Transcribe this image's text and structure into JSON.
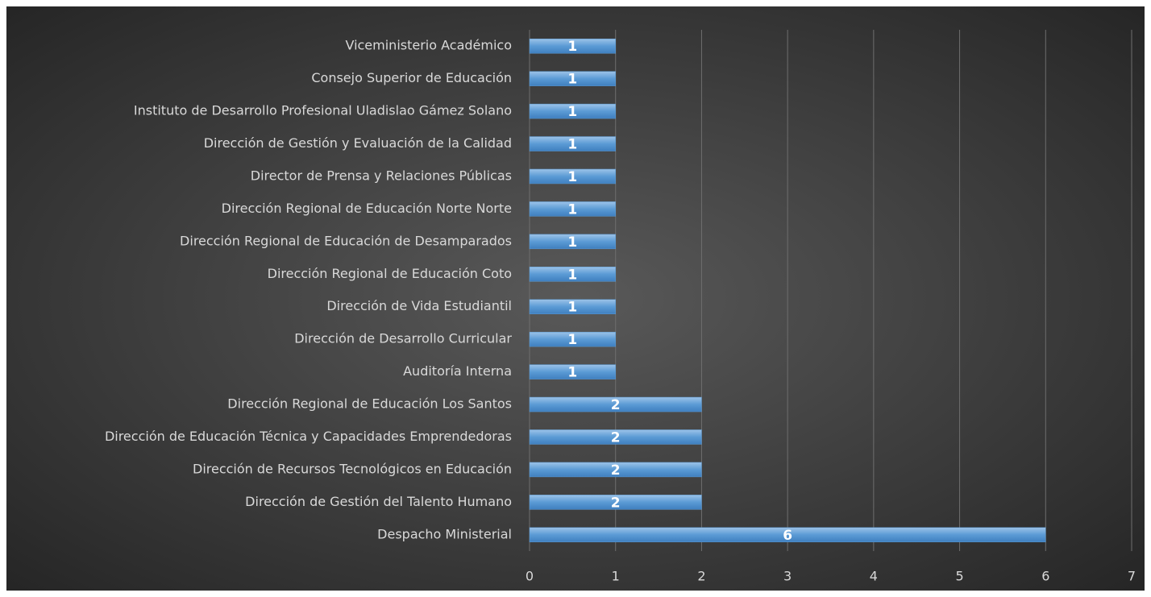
{
  "chart_data": {
    "type": "bar",
    "orientation": "horizontal",
    "categories": [
      "Despacho Ministerial",
      "Dirección de Gestión del Talento Humano",
      "Dirección de Recursos Tecnológicos en Educación",
      "Dirección de Educación Técnica y Capacidades Emprendedoras",
      "Dirección Regional de Educación Los Santos",
      "Auditoría Interna ",
      "Dirección de Desarrollo Curricular",
      "Dirección de Vida Estudiantil",
      "Dirección Regional de Educación Coto",
      "Dirección Regional de Educación de Desamparados",
      "Dirección Regional de Educación Norte Norte",
      "Director de Prensa y Relaciones Públicas",
      "Dirección de Gestión y Evaluación de la Calidad",
      "Instituto de Desarrollo Profesional Uladislao Gámez Solano",
      "Consejo Superior de Educación",
      "Viceministerio Académico"
    ],
    "values": [
      6,
      2,
      2,
      2,
      2,
      1,
      1,
      1,
      1,
      1,
      1,
      1,
      1,
      1,
      1,
      1
    ],
    "color": "#5b9bd5",
    "xlim": [
      0,
      7
    ],
    "xticks": [
      0,
      1,
      2,
      3,
      4,
      5,
      6,
      7
    ],
    "grid": true
  }
}
